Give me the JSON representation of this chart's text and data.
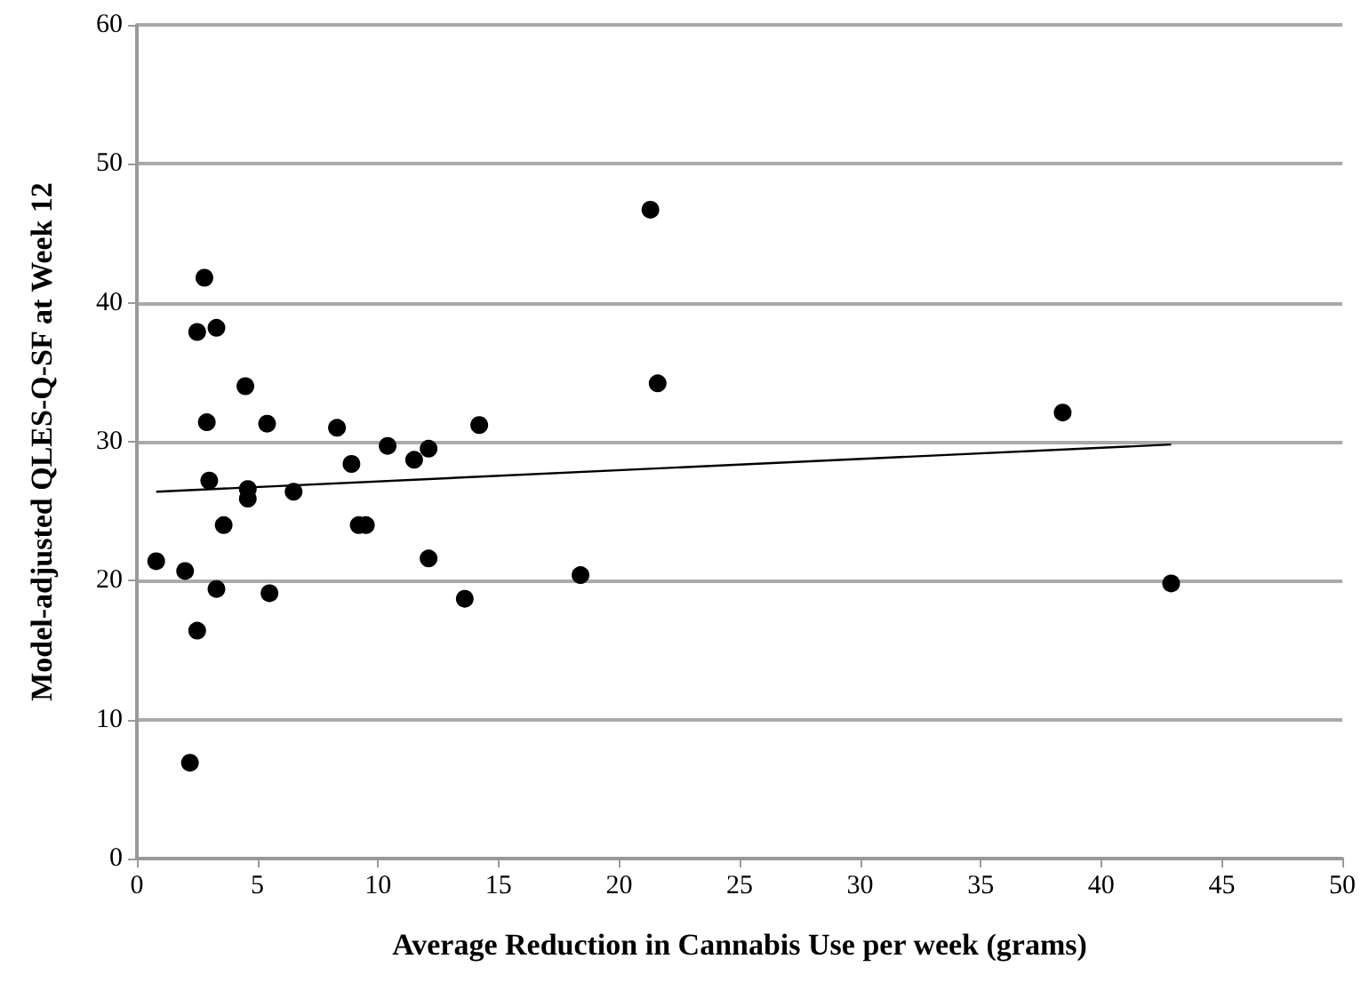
{
  "chart_data": {
    "type": "scatter",
    "xlabel": "Average Reduction in Cannabis Use per week (grams)",
    "ylabel": "Model-adjusted QLES-Q-SF at Week 12",
    "xlim": [
      0,
      50
    ],
    "xticks": [
      0,
      5,
      10,
      15,
      20,
      25,
      30,
      35,
      40,
      45,
      50
    ],
    "ylim": [
      0,
      60
    ],
    "yticks": [
      0,
      10,
      20,
      30,
      40,
      50,
      60
    ],
    "grid": "y",
    "marker": "circle",
    "series": [
      {
        "color": "#000000",
        "x": [
          0.8,
          2.0,
          2.2,
          2.5,
          2.5,
          2.8,
          2.9,
          3.0,
          3.3,
          3.3,
          3.6,
          4.5,
          4.6,
          4.6,
          5.4,
          5.5,
          6.5,
          8.3,
          8.9,
          9.2,
          9.5,
          10.4,
          11.5,
          12.1,
          12.1,
          13.6,
          14.2,
          18.4,
          21.3,
          21.6,
          38.4,
          42.9
        ],
        "values": [
          21.4,
          20.7,
          6.9,
          16.4,
          37.9,
          41.8,
          31.4,
          27.2,
          38.2,
          19.4,
          24.0,
          34.0,
          26.6,
          25.9,
          31.3,
          19.1,
          26.4,
          31.0,
          28.4,
          24.0,
          24.0,
          29.7,
          28.7,
          29.5,
          21.6,
          18.7,
          31.2,
          20.4,
          46.7,
          34.2,
          32.1,
          19.8
        ]
      },
      {
        "type": "line",
        "marker": "none",
        "color": "#000000",
        "x": [
          0.8,
          42.9
        ],
        "values": [
          26.4,
          29.8
        ]
      }
    ]
  }
}
